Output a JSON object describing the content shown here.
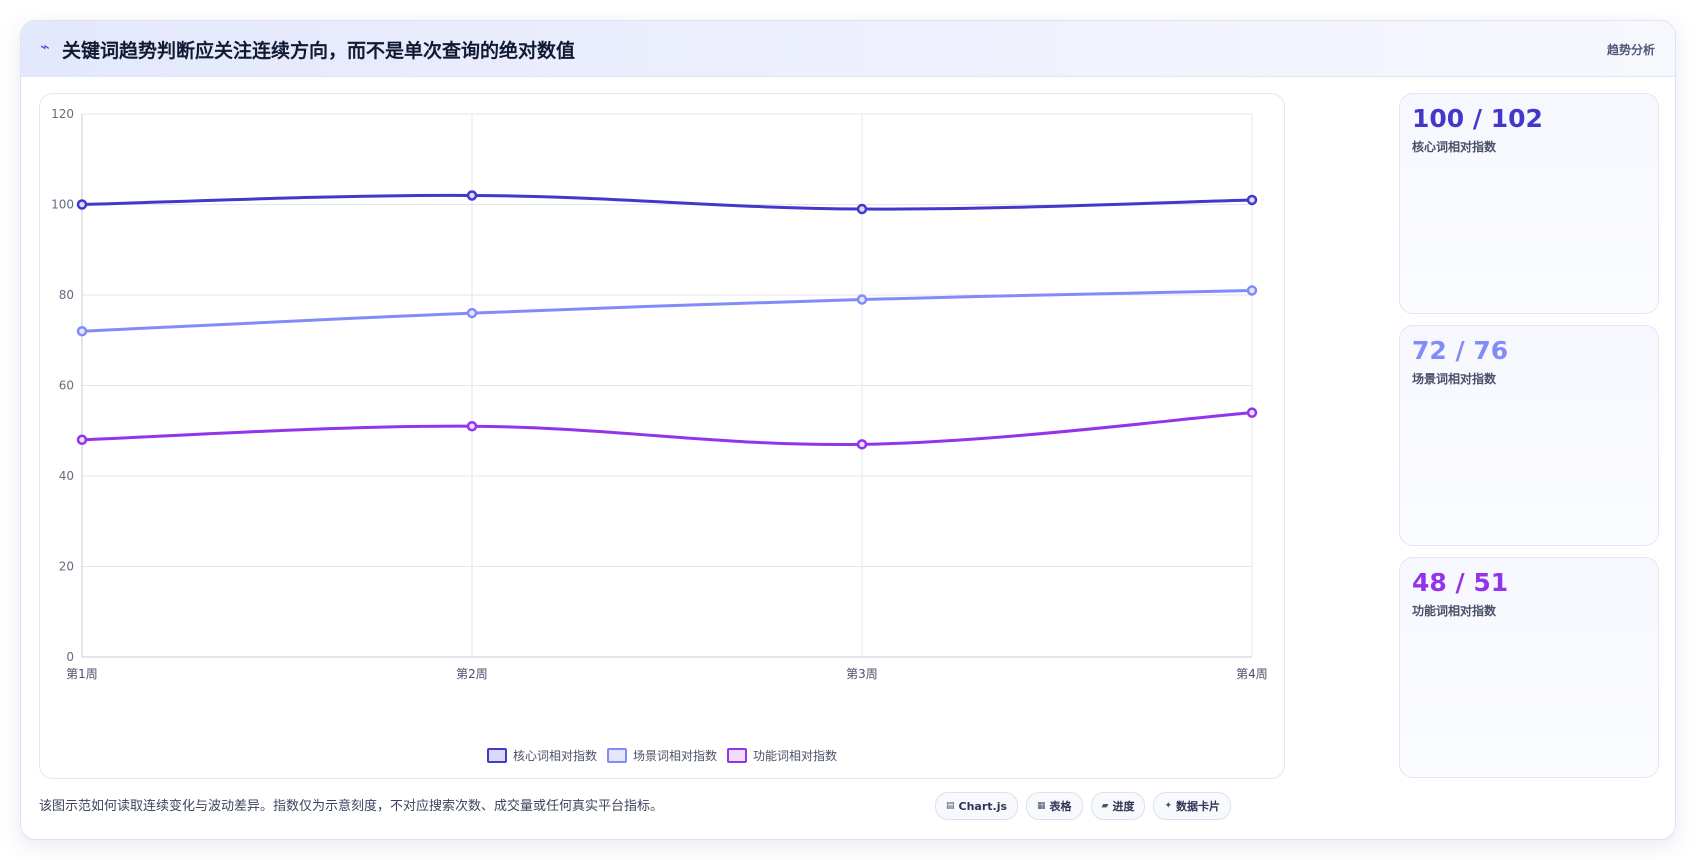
{
  "header": {
    "icon": "activity-icon",
    "title": "关键词趋势判断应关注连续方向，而不是单次查询的绝对数值",
    "tag": "趋势分析"
  },
  "chart_data": {
    "type": "line",
    "x": [
      "第1周",
      "第2周",
      "第3周",
      "第4周"
    ],
    "ylim": [
      0,
      120
    ],
    "yticks": [
      0,
      20,
      40,
      60,
      80,
      100,
      120
    ],
    "grid": true,
    "legend_position": "bottom",
    "series": [
      {
        "name": "核心词相对指数",
        "values": [
          100,
          102,
          99,
          101
        ],
        "color": "#4338ca",
        "fill": "#d9dafb"
      },
      {
        "name": "场景词相对指数",
        "values": [
          72,
          76,
          79,
          81
        ],
        "color": "#818cf8",
        "fill": "#e3e6fc"
      },
      {
        "name": "功能词相对指数",
        "values": [
          48,
          51,
          47,
          54
        ],
        "color": "#9333ea",
        "fill": "#eedcfb"
      }
    ]
  },
  "stats": [
    {
      "value": "100 / 102",
      "label": "核心词相对指数",
      "color": "#4338ca"
    },
    {
      "value": "72 / 76",
      "label": "场景词相对指数",
      "color": "#818cf8"
    },
    {
      "value": "48 / 51",
      "label": "功能词相对指数",
      "color": "#9333ea"
    }
  ],
  "footer": {
    "note": "该图示范如何读取连续变化与波动差异。指数仅为示意刻度，不对应搜索次数、成交量或任何真实平台指标。",
    "chips": [
      {
        "icon": "chart-icon",
        "glyph": "▤",
        "label": "Chart.js"
      },
      {
        "icon": "table-icon",
        "glyph": "▦",
        "label": "表格"
      },
      {
        "icon": "progress-icon",
        "glyph": "▰",
        "label": "进度"
      },
      {
        "icon": "sparkle-icon",
        "glyph": "✦",
        "label": "数据卡片"
      }
    ]
  }
}
